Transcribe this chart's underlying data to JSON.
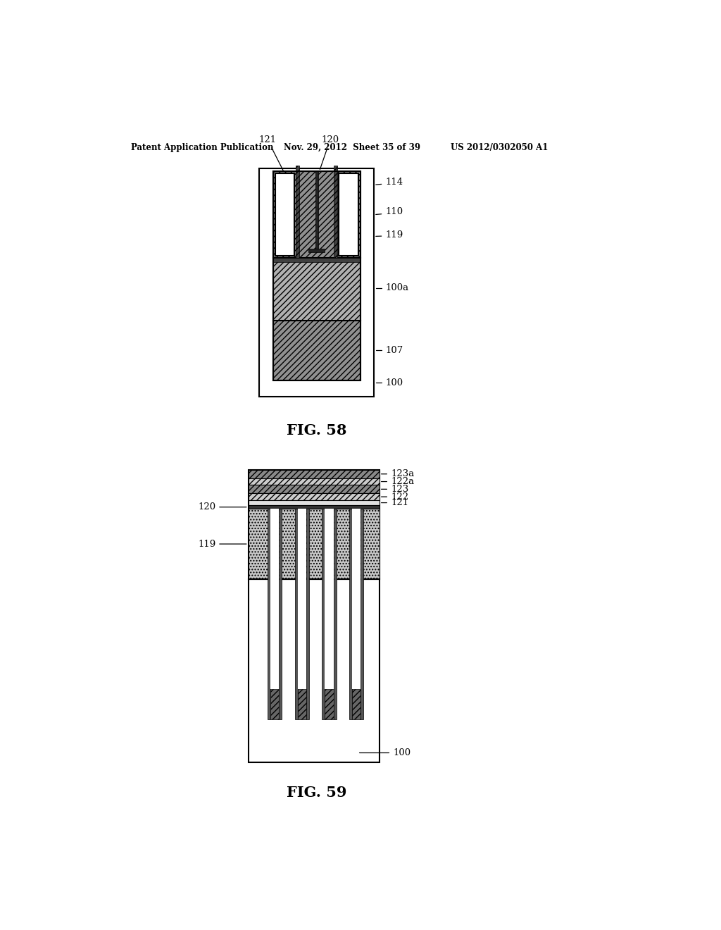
{
  "header_left": "Patent Application Publication",
  "header_mid": "Nov. 29, 2012  Sheet 35 of 39",
  "header_right": "US 2012/0302050 A1",
  "fig58_label": "FIG. 58",
  "fig59_label": "FIG. 59",
  "bg_color": "#ffffff",
  "line_color": "#000000"
}
